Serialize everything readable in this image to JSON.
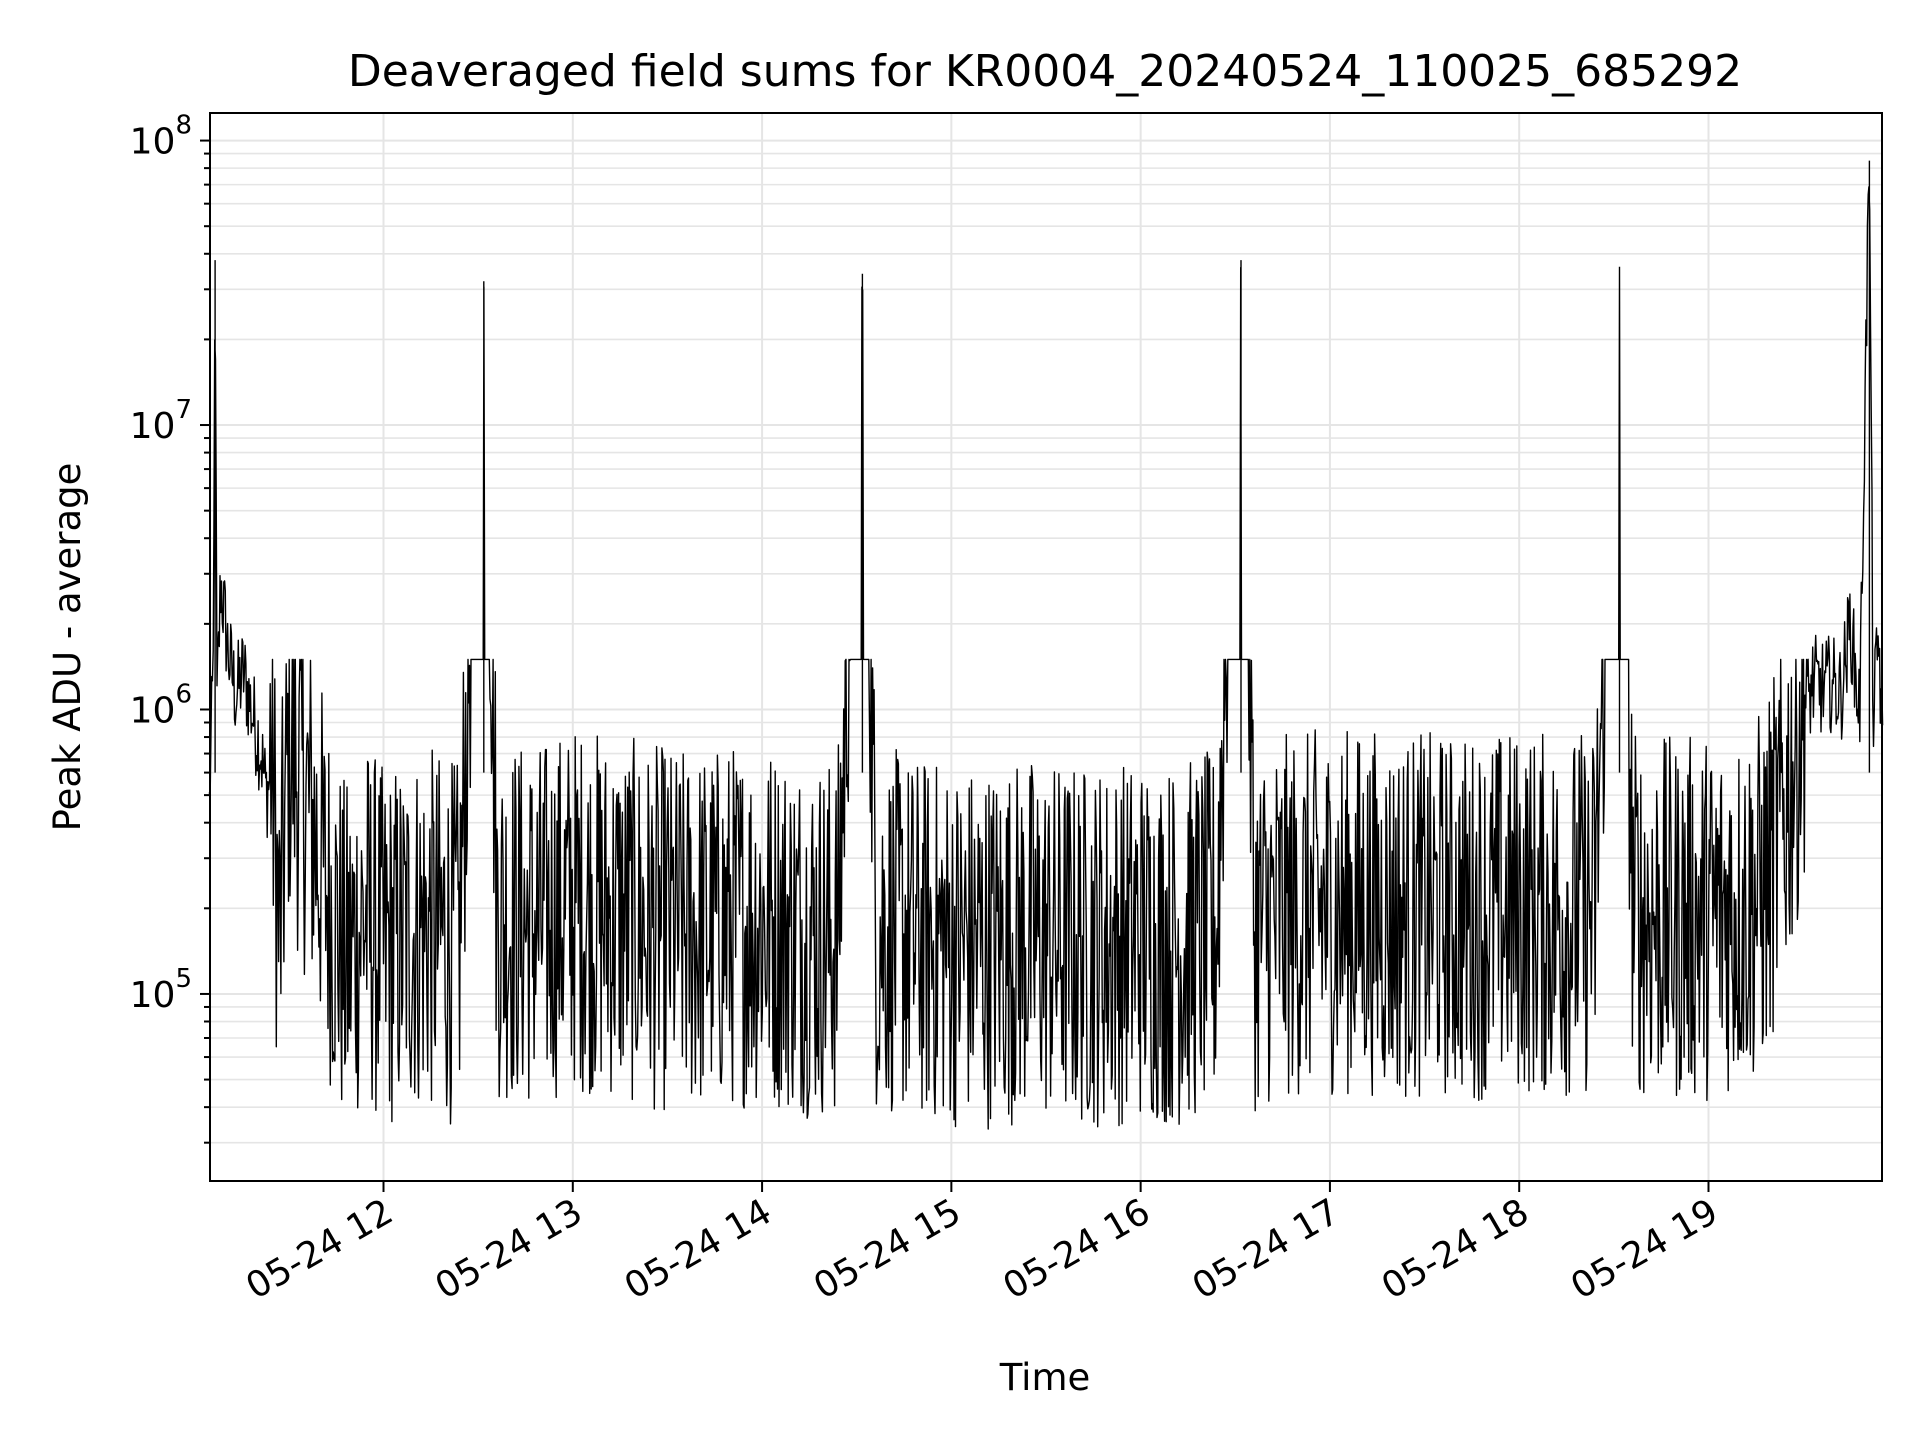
{
  "chart_data": {
    "type": "line",
    "title": "Deaveraged field sums for KR0004_20240524_110025_685292",
    "xlabel": "Time",
    "ylabel": "Peak ADU - average",
    "yscale": "log",
    "ylim": [
      22000,
      125000000
    ],
    "xlim": [
      "05-24 11:05",
      "05-24 19:55"
    ],
    "grid": true,
    "line_color": "#000000",
    "grid_color": "#e5e5e5",
    "x_ticks": [
      {
        "label": "05-24 12",
        "hour": 12
      },
      {
        "label": "05-24 13",
        "hour": 13
      },
      {
        "label": "05-24 14",
        "hour": 14
      },
      {
        "label": "05-24 15",
        "hour": 15
      },
      {
        "label": "05-24 16",
        "hour": 16
      },
      {
        "label": "05-24 17",
        "hour": 17
      },
      {
        "label": "05-24 18",
        "hour": 18
      },
      {
        "label": "05-24 19",
        "hour": 19
      }
    ],
    "y_ticks": [
      {
        "base": "10",
        "exp": "5",
        "value": 100000
      },
      {
        "base": "10",
        "exp": "6",
        "value": 1000000
      },
      {
        "base": "10",
        "exp": "7",
        "value": 10000000
      },
      {
        "base": "10",
        "exp": "8",
        "value": 100000000
      }
    ],
    "series": [
      {
        "x_unit": "hour of 05-24",
        "points": [
          [
            11.08,
            400000
          ],
          [
            11.1,
            1200000
          ],
          [
            11.11,
            38000000
          ],
          [
            11.12,
            900000
          ],
          [
            11.14,
            2500000
          ],
          [
            11.18,
            1400000
          ],
          [
            11.22,
            1000000
          ],
          [
            11.26,
            1200000
          ],
          [
            11.3,
            900000
          ],
          [
            11.35,
            650000
          ],
          [
            11.38,
            450000
          ],
          [
            11.4,
            500000
          ],
          [
            11.42,
            300000
          ],
          [
            11.45,
            95000
          ],
          [
            11.5,
            500000
          ],
          [
            11.6,
            300000
          ],
          [
            11.7,
            150000
          ],
          [
            11.8,
            80000
          ],
          [
            11.9,
            120000
          ],
          [
            12.0,
            90000
          ],
          [
            12.2,
            110000
          ],
          [
            12.4,
            95000
          ],
          [
            12.53,
            32000000
          ],
          [
            12.6,
            120000
          ],
          [
            12.8,
            110000
          ],
          [
            13.0,
            130000
          ],
          [
            13.2,
            120000
          ],
          [
            13.4,
            110000
          ],
          [
            13.6,
            105000
          ],
          [
            13.8,
            110000
          ],
          [
            14.0,
            115000
          ],
          [
            14.2,
            105000
          ],
          [
            14.4,
            100000
          ],
          [
            14.53,
            34000000
          ],
          [
            14.6,
            110000
          ],
          [
            14.8,
            100000
          ],
          [
            15.0,
            95000
          ],
          [
            15.2,
            95000
          ],
          [
            15.4,
            100000
          ],
          [
            15.6,
            95000
          ],
          [
            15.8,
            95000
          ],
          [
            16.0,
            100000
          ],
          [
            16.2,
            95000
          ],
          [
            16.4,
            105000
          ],
          [
            16.53,
            38000000
          ],
          [
            16.6,
            110000
          ],
          [
            16.8,
            120000
          ],
          [
            17.0,
            125000
          ],
          [
            17.2,
            125000
          ],
          [
            17.4,
            120000
          ],
          [
            17.6,
            120000
          ],
          [
            17.8,
            120000
          ],
          [
            18.0,
            125000
          ],
          [
            18.2,
            120000
          ],
          [
            18.4,
            125000
          ],
          [
            18.53,
            36000000
          ],
          [
            18.6,
            125000
          ],
          [
            18.8,
            115000
          ],
          [
            19.0,
            120000
          ],
          [
            19.2,
            130000
          ],
          [
            19.3,
            150000
          ],
          [
            19.4,
            280000
          ],
          [
            19.47,
            500000
          ],
          [
            19.52,
            900000
          ],
          [
            19.55,
            1100000
          ],
          [
            19.6,
            1050000
          ],
          [
            19.65,
            1100000
          ],
          [
            19.7,
            1000000
          ],
          [
            19.75,
            1800000
          ],
          [
            19.78,
            1100000
          ],
          [
            19.8,
            900000
          ],
          [
            19.85,
            85000000
          ],
          [
            19.87,
            800000
          ],
          [
            19.9,
            1600000
          ],
          [
            19.92,
            600000
          ]
        ]
      }
    ]
  }
}
